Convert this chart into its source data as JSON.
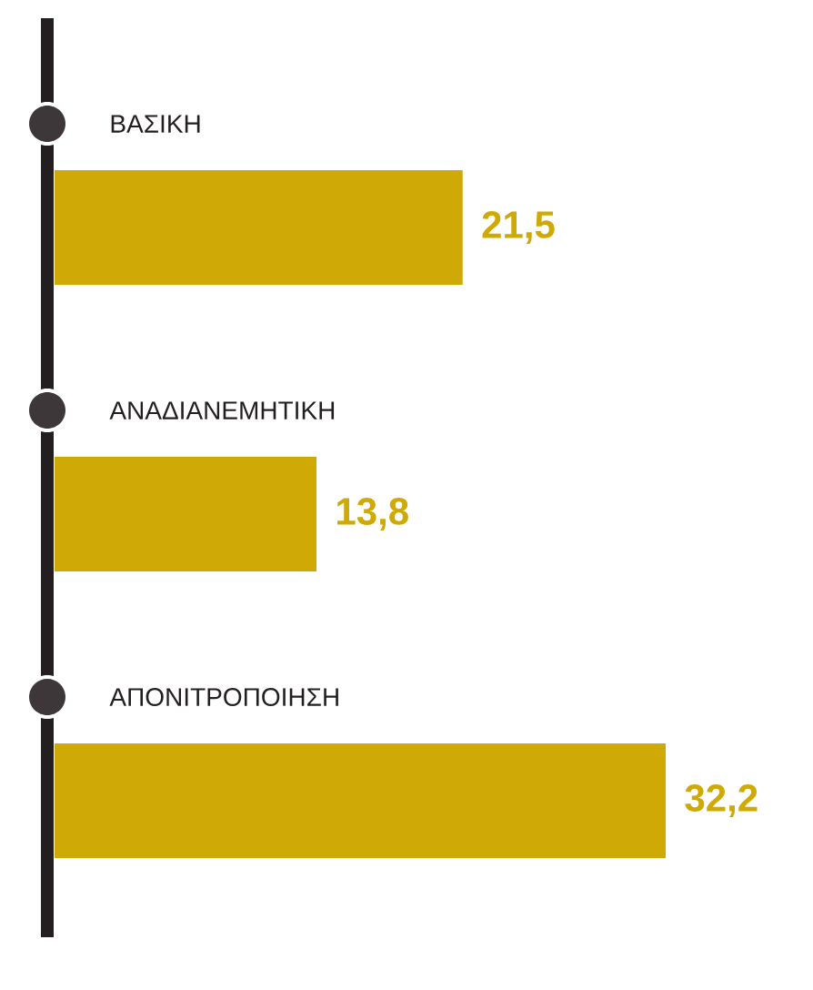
{
  "chart_data": {
    "type": "bar",
    "orientation": "horizontal",
    "categories": [
      "ΒΑΣΙΚΗ",
      "ΑΝΑΔΙΑΝΕΜΗΤΙΚΗ",
      "ΑΠΟΝΙΤΡΟΠΟΙΗΣΗ"
    ],
    "values": [
      21.5,
      13.8,
      32.2
    ],
    "value_labels": [
      "21,5",
      "13,8",
      "32,2"
    ],
    "color": "#cfa905"
  }
}
